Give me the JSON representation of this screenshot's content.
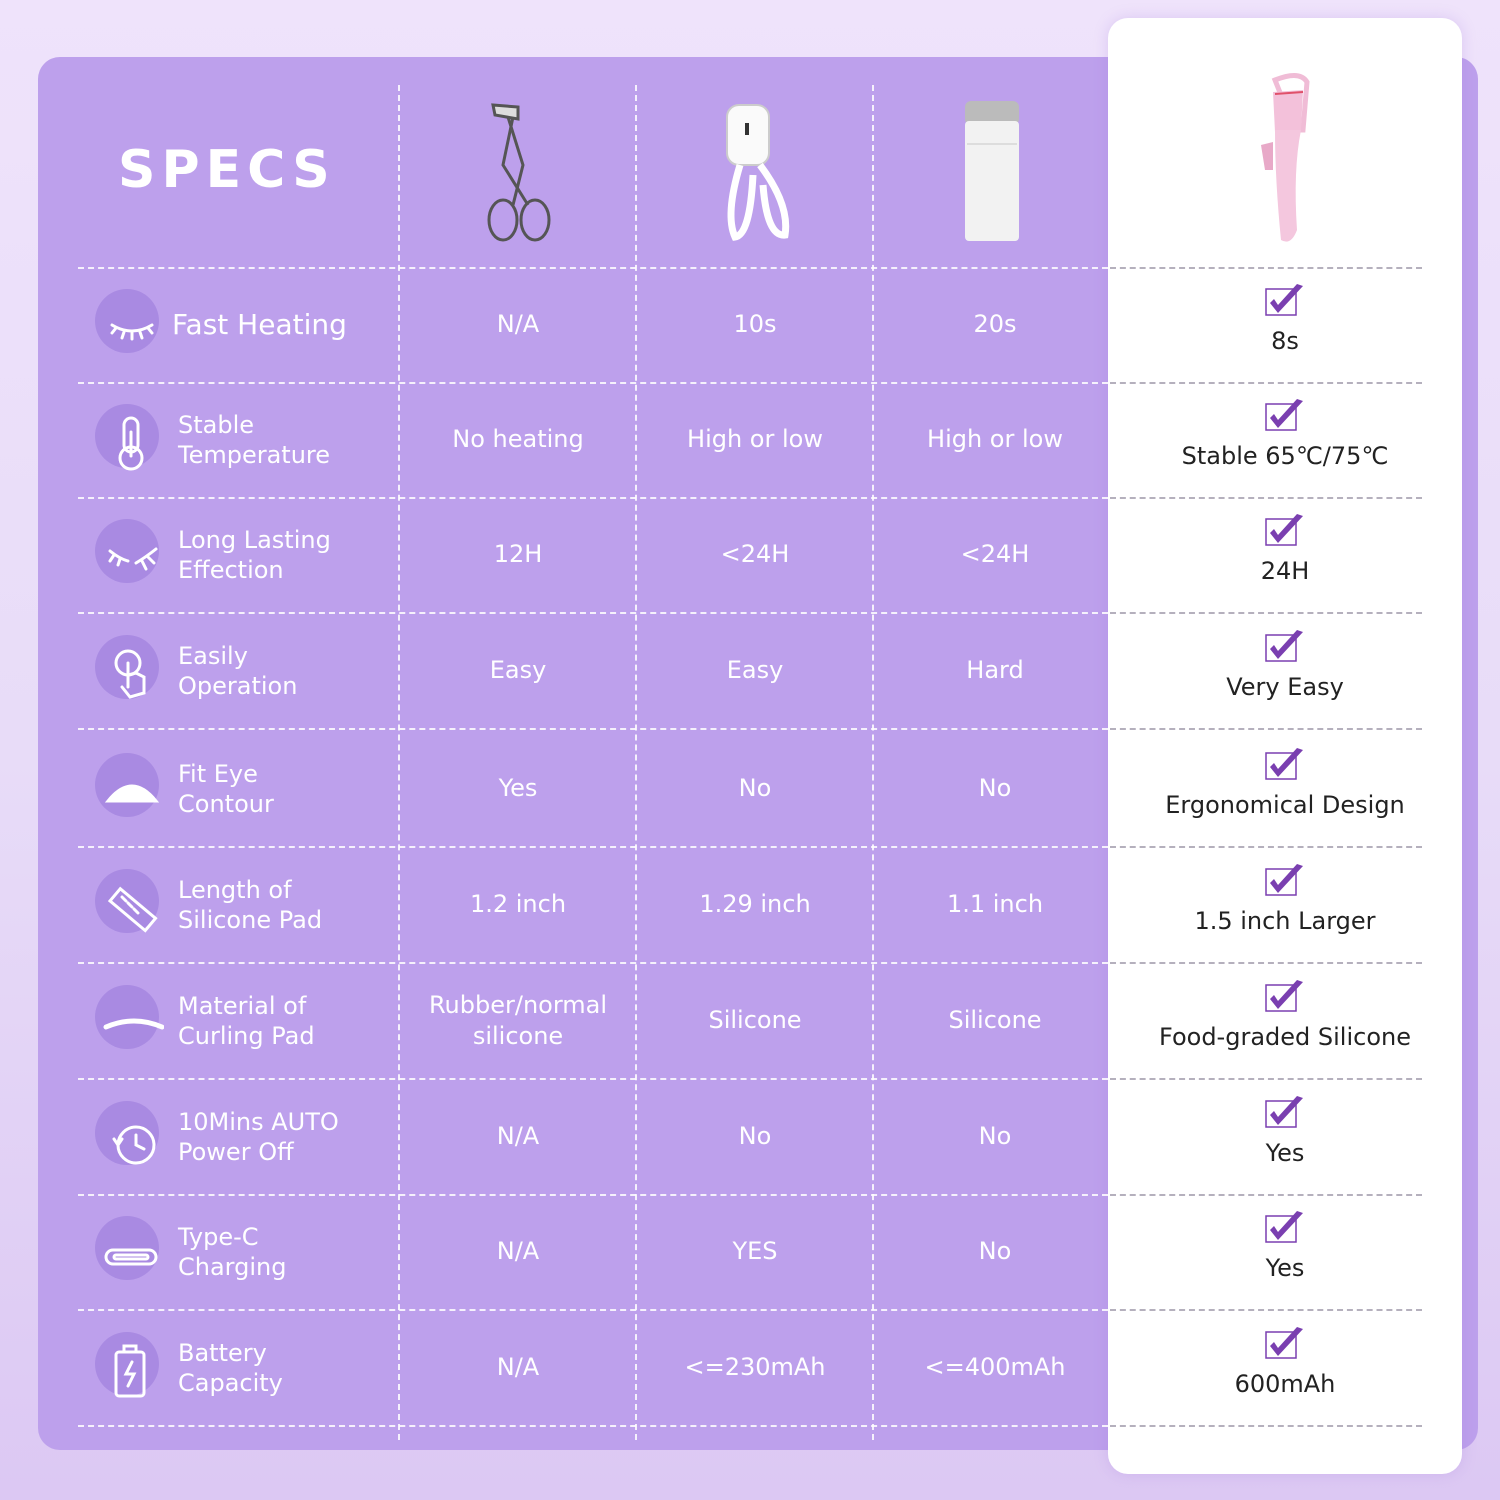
{
  "title": "SPECS",
  "colors": {
    "panel": "#bda0ec",
    "icon_circle": "#a98ae2",
    "check": "#7a3fb0",
    "highlight_card": "#ffffff"
  },
  "products": [
    {
      "image": "manual-eyelash-curler"
    },
    {
      "image": "white-heated-scissor-curler"
    },
    {
      "image": "white-heated-comb-curler"
    },
    {
      "image": "pink-heated-eyelash-curler"
    }
  ],
  "rows": [
    {
      "icon": "closed-eye-icon",
      "label": "Fast Heating",
      "values": [
        "N/A",
        "10s",
        "20s"
      ],
      "best": "8s",
      "best_checked": true
    },
    {
      "icon": "thermometer-icon",
      "label": "Stable\nTemperature",
      "values": [
        "No heating",
        "High or low",
        "High or low"
      ],
      "best": "Stable 65℃/75℃",
      "best_checked": true
    },
    {
      "icon": "eyelash-icon",
      "label": "Long Lasting\nEffection",
      "values": [
        "12H",
        "<24H",
        "<24H"
      ],
      "best": "24H",
      "best_checked": true
    },
    {
      "icon": "touch-hand-icon",
      "label": "Easily\nOperation",
      "values": [
        "Easy",
        "Easy",
        "Hard"
      ],
      "best": "Very Easy",
      "best_checked": true
    },
    {
      "icon": "eye-contour-icon",
      "label": "Fit Eye\nContour",
      "values": [
        "Yes",
        "No",
        "No"
      ],
      "best": "Ergonomical Design",
      "best_checked": true
    },
    {
      "icon": "ruler-icon",
      "label": "Length of\nSilicone Pad",
      "values": [
        "1.2 inch",
        "1.29 inch",
        "1.1 inch"
      ],
      "best": "1.5 inch Larger",
      "best_checked": true
    },
    {
      "icon": "curling-pad-icon",
      "label": "Material of\nCurling Pad",
      "values": [
        "Rubber/normal\nsilicone",
        "Silicone",
        "Silicone"
      ],
      "best": "Food-graded Silicone",
      "best_checked": true
    },
    {
      "icon": "clock-icon",
      "label": "10Mins AUTO\nPower Off",
      "values": [
        "N/A",
        "No",
        "No"
      ],
      "best": "Yes",
      "best_checked": true
    },
    {
      "icon": "usb-c-icon",
      "label": "Type-C\nCharging",
      "values": [
        "N/A",
        "YES",
        "No"
      ],
      "best": "Yes",
      "best_checked": true
    },
    {
      "icon": "battery-icon",
      "label": "Battery\nCapacity",
      "values": [
        "N/A",
        "<=230mAh",
        "<=400mAh"
      ],
      "best": "600mAh",
      "best_checked": true
    }
  ]
}
